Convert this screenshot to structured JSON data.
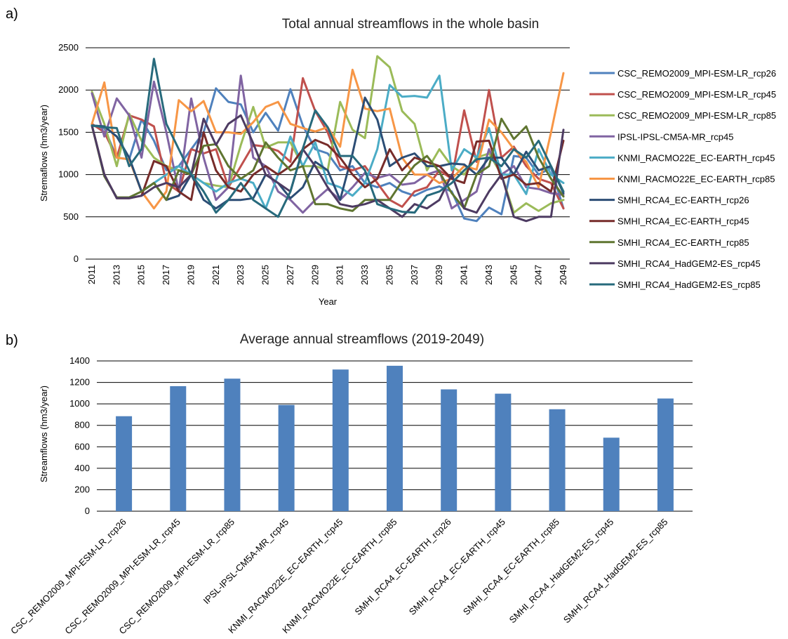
{
  "panel_labels": [
    "a)",
    "b)"
  ],
  "chart_data": [
    {
      "type": "line",
      "title": "Total annual streamflows in the whole basin",
      "xlabel": "Year",
      "ylabel": "Stremaflows (hm3/year)",
      "ylim": [
        0,
        2500
      ],
      "yticks": [
        0,
        500,
        1000,
        1500,
        2000,
        2500
      ],
      "grid": true,
      "legend": "right",
      "xticks": [
        "2011",
        "2013",
        "2015",
        "2017",
        "2019",
        "2021",
        "2023",
        "2025",
        "2027",
        "2029",
        "2031",
        "2033",
        "2035",
        "2037",
        "2039",
        "2041",
        "2043",
        "2045",
        "2047",
        "2049"
      ],
      "x": [
        2011,
        2012,
        2013,
        2014,
        2015,
        2016,
        2017,
        2018,
        2019,
        2020,
        2021,
        2022,
        2023,
        2024,
        2025,
        2026,
        2027,
        2028,
        2029,
        2030,
        2031,
        2032,
        2033,
        2034,
        2035,
        2036,
        2037,
        2038,
        2039,
        2040,
        2041,
        2042,
        2043,
        2044,
        2045,
        2046,
        2047,
        2048,
        2049
      ],
      "series": [
        {
          "name": "CSC_REMO2009_MPI-ESM-LR_rcp26",
          "color": "#4f81bd",
          "values": [
            1580,
            1550,
            1200,
            1180,
            1650,
            1400,
            1050,
            1100,
            1300,
            1500,
            2020,
            1860,
            1830,
            1500,
            1730,
            1520,
            2010,
            1580,
            1300,
            1250,
            1050,
            1100,
            900,
            850,
            900,
            800,
            750,
            820,
            860,
            800,
            480,
            450,
            610,
            530,
            1220,
            1200,
            1000,
            1080,
            600
          ]
        },
        {
          "name": "CSC_REMO2009_MPI-ESM-LR_rcp45",
          "color": "#c0504d",
          "values": [
            1600,
            1500,
            1200,
            1700,
            1650,
            1570,
            900,
            800,
            1300,
            1250,
            1300,
            850,
            1100,
            1350,
            1330,
            1280,
            1150,
            2140,
            1750,
            1500,
            1100,
            1050,
            1100,
            900,
            700,
            620,
            800,
            850,
            1050,
            950,
            1760,
            1150,
            2000,
            1200,
            1330,
            1100,
            950,
            900,
            600
          ]
        },
        {
          "name": "CSC_REMO2009_MPI-ESM-LR_rcp85",
          "color": "#9bbb59",
          "values": [
            1980,
            1600,
            1100,
            1720,
            1400,
            1200,
            1100,
            1050,
            1000,
            900,
            870,
            850,
            1350,
            1800,
            1320,
            1380,
            1380,
            1100,
            1100,
            1050,
            1860,
            1530,
            1430,
            2400,
            2270,
            1750,
            1600,
            1050,
            1300,
            1100,
            1000,
            1200,
            1250,
            1000,
            550,
            660,
            570,
            660,
            700
          ]
        },
        {
          "name": "IPSL-IPSL-CM5A-MR_rcp45",
          "color": "#8064a2",
          "values": [
            1960,
            1450,
            1900,
            1700,
            1200,
            2100,
            1500,
            800,
            1900,
            1200,
            700,
            850,
            2170,
            1200,
            1100,
            800,
            700,
            550,
            700,
            830,
            700,
            850,
            1020,
            960,
            1000,
            880,
            900,
            1000,
            1050,
            600,
            700,
            800,
            1300,
            1000,
            1100,
            850,
            830,
            780,
            760
          ]
        },
        {
          "name": "KNMI_RACMO22E_EC-EARTH_rcp45",
          "color": "#4bacc6",
          "values": [
            1580,
            1570,
            1450,
            1200,
            800,
            900,
            1000,
            1100,
            1000,
            900,
            800,
            900,
            950,
            900,
            600,
            1000,
            1450,
            1100,
            1380,
            900,
            850,
            750,
            900,
            1300,
            2060,
            1920,
            1930,
            1910,
            2170,
            1050,
            1300,
            1200,
            1550,
            1000,
            1000,
            770,
            1300,
            1000,
            900
          ]
        },
        {
          "name": "KNMI_RACMO22E_EC-EARTH_rcp85",
          "color": "#f79646",
          "values": [
            1600,
            2090,
            1200,
            1180,
            800,
            600,
            800,
            1880,
            1750,
            1870,
            1500,
            1500,
            1480,
            1620,
            1800,
            1860,
            1600,
            1550,
            1510,
            1560,
            1330,
            2240,
            1780,
            1750,
            1780,
            1200,
            1000,
            1000,
            900,
            950,
            1100,
            1060,
            1650,
            1500,
            1300,
            1150,
            850,
            1500,
            2200
          ]
        },
        {
          "name": "SMHI_RCA4_EC-EARTH_rcp26",
          "color": "#2c4d75",
          "values": [
            1580,
            1570,
            1450,
            1200,
            800,
            900,
            700,
            750,
            1000,
            700,
            600,
            700,
            700,
            720,
            1000,
            900,
            720,
            850,
            1150,
            1050,
            700,
            1250,
            1910,
            1650,
            1100,
            1200,
            1250,
            1100,
            1100,
            1130,
            1120,
            1000,
            1200,
            1200,
            1000,
            1270,
            1050,
            1100,
            780
          ]
        },
        {
          "name": "SMHI_RCA4_EC-EARTH_rcp45",
          "color": "#772c2a",
          "values": [
            1580,
            1000,
            720,
            720,
            750,
            1160,
            1100,
            800,
            700,
            1500,
            1050,
            850,
            800,
            1000,
            1100,
            1000,
            1100,
            1300,
            1410,
            1350,
            1200,
            1000,
            850,
            950,
            1300,
            1050,
            1200,
            1150,
            1100,
            950,
            900,
            1390,
            1400,
            950,
            1000,
            880,
            900,
            800,
            1400
          ]
        },
        {
          "name": "SMHI_RCA4_EC-EARTH_rcp85",
          "color": "#5f7530",
          "values": [
            1580,
            980,
            730,
            730,
            800,
            900,
            700,
            1050,
            1000,
            1340,
            1360,
            1100,
            950,
            1050,
            1380,
            1200,
            1050,
            1100,
            650,
            650,
            600,
            570,
            700,
            700,
            700,
            920,
            1110,
            1220,
            1030,
            780,
            600,
            1000,
            1100,
            1660,
            1420,
            1570,
            1200,
            950,
            740
          ]
        },
        {
          "name": "SMHI_RCA4_HadGEM2-ES_rcp45",
          "color": "#4d3b62",
          "values": [
            1580,
            1000,
            720,
            720,
            750,
            850,
            900,
            850,
            1000,
            1660,
            1350,
            1600,
            1700,
            1370,
            1000,
            900,
            800,
            1300,
            1100,
            850,
            650,
            620,
            650,
            700,
            600,
            500,
            650,
            600,
            700,
            1000,
            600,
            550,
            800,
            1000,
            500,
            450,
            500,
            500,
            1530
          ]
        },
        {
          "name": "SMHI_RCA4_HadGEM2-ES_rcp85",
          "color": "#276a7c",
          "values": [
            1580,
            1560,
            1550,
            1100,
            1300,
            2370,
            1600,
            1300,
            1000,
            800,
            550,
            700,
            900,
            700,
            600,
            500,
            800,
            1310,
            1760,
            1560,
            1220,
            1220,
            1050,
            650,
            600,
            560,
            550,
            750,
            800,
            900,
            1050,
            1180,
            1200,
            1100,
            1300,
            1200,
            1400,
            1100,
            800
          ]
        }
      ]
    },
    {
      "type": "bar",
      "title": "Average annual streamflows (2019-2049)",
      "xlabel": "",
      "ylabel": "Streamflows (hm3/year)",
      "ylim": [
        0,
        1400
      ],
      "yticks": [
        0,
        200,
        400,
        600,
        800,
        1000,
        1200,
        1400
      ],
      "grid": true,
      "color": "#4f81bd",
      "categories": [
        "CSC_REMO2009_MPI-ESM-LR_rcp26",
        "CSC_REMO2009_MPI-ESM-LR_rcp45",
        "CSC_REMO2009_MPI-ESM-LR_rcp85",
        "IPSL-IPSL-CM5A-MR_rcp45",
        "KNMI_RACMO22E_EC-EARTH_rcp45",
        "KNMI_RACMO22E_EC-EARTH_rcp85",
        "SMHI_RCA4_EC-EARTH_rcp26",
        "SMHI_RCA4_EC-EARTH_rcp45",
        "SMHI_RCA4_EC-EARTH_rcp85",
        "SMHI_RCA4_HadGEM2-ES_rcp45",
        "SMHI_RCA4_HadGEM2-ES_rcp85"
      ],
      "values": [
        885,
        1165,
        1235,
        990,
        1320,
        1355,
        1135,
        1095,
        950,
        685,
        1050
      ]
    }
  ]
}
